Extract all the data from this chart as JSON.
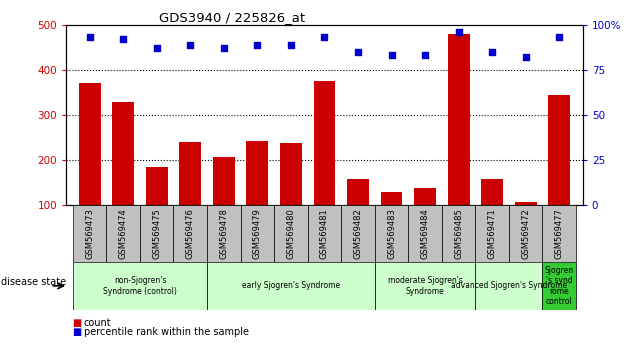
{
  "title": "GDS3940 / 225826_at",
  "samples": [
    "GSM569473",
    "GSM569474",
    "GSM569475",
    "GSM569476",
    "GSM569478",
    "GSM569479",
    "GSM569480",
    "GSM569481",
    "GSM569482",
    "GSM569483",
    "GSM569484",
    "GSM569485",
    "GSM569471",
    "GSM569472",
    "GSM569477"
  ],
  "counts": [
    370,
    330,
    185,
    240,
    208,
    242,
    237,
    375,
    158,
    130,
    138,
    480,
    158,
    108,
    345
  ],
  "percentile_ranks": [
    93,
    92,
    87,
    89,
    87,
    89,
    89,
    93,
    85,
    83,
    83,
    96,
    85,
    82,
    93
  ],
  "ylim_left": [
    100,
    500
  ],
  "ylim_right": [
    0,
    100
  ],
  "yticks_left": [
    100,
    200,
    300,
    400,
    500
  ],
  "yticks_right": [
    0,
    25,
    50,
    75,
    100
  ],
  "bar_color": "#cc0000",
  "dot_color": "#0000cc",
  "grid_color": "#000000",
  "group_labels": [
    "non-Sjogren's\nSyndrome (control)",
    "early Sjogren's Syndrome",
    "moderate Sjogren's\nSyndrome",
    "advanced Sjogren's Syndrome",
    "Sjogren\n's synd\nrome\ncontrol"
  ],
  "group_starts": [
    0,
    4,
    9,
    12,
    14
  ],
  "group_ends": [
    4,
    9,
    12,
    14,
    15
  ],
  "group_colors": [
    "#ccffcc",
    "#ccffcc",
    "#ccffcc",
    "#ccffcc",
    "#33cc33"
  ],
  "disease_state_label": "disease state",
  "legend_count_label": "count",
  "legend_pct_label": "percentile rank within the sample",
  "bar_color_left": "#cc0000",
  "bar_color_right": "#0000cc",
  "bar_width": 0.65,
  "xtick_bg": "#c0c0c0"
}
